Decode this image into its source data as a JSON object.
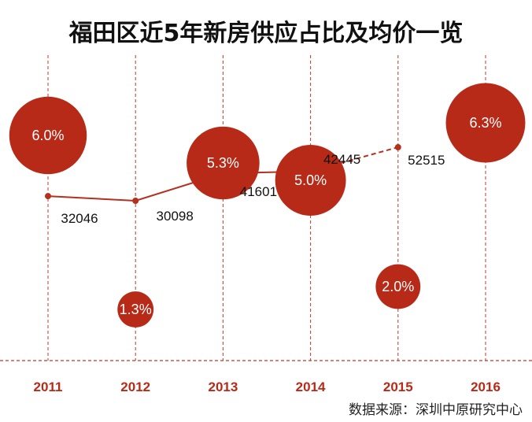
{
  "title": "福田区近5年新房供应占比及均价一览",
  "source": "数据来源：深圳中原研究中心",
  "colors": {
    "accent": "#b82a18",
    "line": "#b5301f",
    "grid": "#c0392b",
    "text": "#111111"
  },
  "chart_data": {
    "type": "bubble+line",
    "categories": [
      "2011",
      "2012",
      "2013",
      "2014",
      "2015",
      "2016"
    ],
    "series": [
      {
        "values": [
          32046,
          30098,
          41601,
          42445,
          52515,
          null
        ],
        "value_labels": [
          "32046",
          "30098",
          "41601",
          "42445",
          "52515"
        ],
        "style": "line with markers; 2015 segment dashed"
      },
      {
        "values": [
          6.0,
          1.3,
          5.3,
          5.0,
          2.0,
          6.3
        ],
        "value_labels": [
          "6.0%",
          "1.3%",
          "5.3%",
          "5.0%",
          "2.0%",
          "6.3%"
        ],
        "unit": "%",
        "style": "bubbles sized by value"
      }
    ],
    "grid": "vertical dashed lines at each category",
    "axis_line": "dashed baseline"
  }
}
